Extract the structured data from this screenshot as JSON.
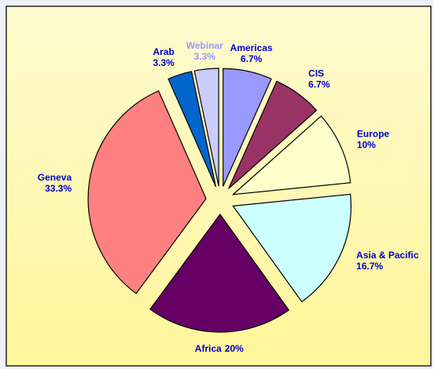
{
  "chart_data": {
    "type": "pie",
    "categories": [
      "Americas",
      "CIS",
      "Europe",
      "Asia & Pacific",
      "Africa",
      "Geneva",
      "Arab",
      "Webinar"
    ],
    "values": [
      6.7,
      6.7,
      10,
      16.7,
      20,
      33.3,
      3.3,
      3.3
    ],
    "value_labels": [
      "6.7%",
      "6.7%",
      "10%",
      "16.7%",
      "20%",
      "33.3%",
      "3.3%",
      "3.3%"
    ],
    "colors": [
      "#9999ff",
      "#993366",
      "#ffffcc",
      "#ccffff",
      "#660066",
      "#ff8080",
      "#0066cc",
      "#ccccff"
    ],
    "label_colors": [
      "#0000cc",
      "#0000cc",
      "#0000cc",
      "#0000cc",
      "#0000cc",
      "#0000cc",
      "#0000cc",
      "#9999ff"
    ]
  }
}
